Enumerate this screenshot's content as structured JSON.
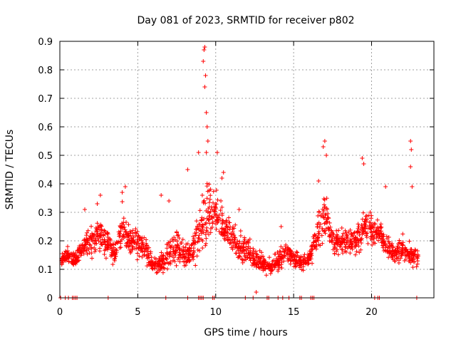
{
  "colors": {
    "series": "#ff0000",
    "grid": "#a0a0a0",
    "axis": "#000000",
    "background": "#ffffff"
  },
  "chart_data": {
    "type": "scatter",
    "marker": "plus",
    "title": "Day 081 of 2023, SRMTID for receiver p802",
    "xlabel": "GPS time / hours",
    "ylabel": "SRMTID / TECUs",
    "xlim": [
      0,
      24
    ],
    "ylim": [
      0,
      0.9
    ],
    "xticks": [
      0,
      5,
      10,
      15,
      20
    ],
    "yticks": [
      0,
      0.1,
      0.2,
      0.3,
      0.4,
      0.5,
      0.6,
      0.7,
      0.8,
      0.9
    ],
    "xtick_labels": [
      "0",
      "5",
      "10",
      "15",
      "20"
    ],
    "ytick_labels": [
      "0",
      "0.1",
      "0.2",
      "0.3",
      "0.4",
      "0.5",
      "0.6",
      "0.7",
      "0.8",
      "0.9"
    ],
    "grid": true,
    "series": [
      {
        "name": "SRMTID p802",
        "color": "#ff0000",
        "description_of_envelope": "hour, typical_value, spread",
        "envelope": [
          [
            0.1,
            0.13,
            0.03
          ],
          [
            0.5,
            0.15,
            0.03
          ],
          [
            1.0,
            0.13,
            0.04
          ],
          [
            1.5,
            0.18,
            0.06
          ],
          [
            2.0,
            0.2,
            0.07
          ],
          [
            2.5,
            0.22,
            0.08
          ],
          [
            3.0,
            0.2,
            0.08
          ],
          [
            3.5,
            0.15,
            0.05
          ],
          [
            4.0,
            0.25,
            0.1
          ],
          [
            4.5,
            0.2,
            0.07
          ],
          [
            5.0,
            0.19,
            0.07
          ],
          [
            5.5,
            0.17,
            0.06
          ],
          [
            6.0,
            0.11,
            0.04
          ],
          [
            6.5,
            0.12,
            0.05
          ],
          [
            7.0,
            0.16,
            0.08
          ],
          [
            7.5,
            0.18,
            0.09
          ],
          [
            8.0,
            0.15,
            0.07
          ],
          [
            8.5,
            0.17,
            0.08
          ],
          [
            9.0,
            0.25,
            0.12
          ],
          [
            9.5,
            0.3,
            0.15
          ],
          [
            10.0,
            0.3,
            0.1
          ],
          [
            10.5,
            0.25,
            0.08
          ],
          [
            11.0,
            0.22,
            0.07
          ],
          [
            11.5,
            0.18,
            0.07
          ],
          [
            12.0,
            0.17,
            0.06
          ],
          [
            12.5,
            0.14,
            0.05
          ],
          [
            13.0,
            0.12,
            0.05
          ],
          [
            13.5,
            0.11,
            0.04
          ],
          [
            14.0,
            0.13,
            0.05
          ],
          [
            14.5,
            0.16,
            0.05
          ],
          [
            15.0,
            0.14,
            0.04
          ],
          [
            15.5,
            0.12,
            0.04
          ],
          [
            16.0,
            0.13,
            0.04
          ],
          [
            16.5,
            0.22,
            0.08
          ],
          [
            17.0,
            0.3,
            0.12
          ],
          [
            17.5,
            0.2,
            0.06
          ],
          [
            18.0,
            0.19,
            0.06
          ],
          [
            18.5,
            0.2,
            0.06
          ],
          [
            19.0,
            0.2,
            0.06
          ],
          [
            19.5,
            0.25,
            0.1
          ],
          [
            20.0,
            0.24,
            0.07
          ],
          [
            20.5,
            0.22,
            0.07
          ],
          [
            21.0,
            0.18,
            0.06
          ],
          [
            21.5,
            0.15,
            0.05
          ],
          [
            22.0,
            0.17,
            0.06
          ],
          [
            22.5,
            0.15,
            0.05
          ]
        ],
        "peaks": [
          [
            9.3,
            0.88
          ],
          [
            9.25,
            0.87
          ],
          [
            9.2,
            0.83
          ],
          [
            9.35,
            0.78
          ],
          [
            9.3,
            0.74
          ],
          [
            9.4,
            0.65
          ],
          [
            9.45,
            0.6
          ],
          [
            9.5,
            0.55
          ],
          [
            9.4,
            0.51
          ],
          [
            8.9,
            0.51
          ],
          [
            10.1,
            0.51
          ],
          [
            17.0,
            0.55
          ],
          [
            16.9,
            0.53
          ],
          [
            17.1,
            0.5
          ],
          [
            19.4,
            0.49
          ],
          [
            19.5,
            0.47
          ],
          [
            22.5,
            0.55
          ],
          [
            22.55,
            0.52
          ],
          [
            22.5,
            0.46
          ],
          [
            22.6,
            0.39
          ],
          [
            4.2,
            0.39
          ],
          [
            4.0,
            0.37
          ],
          [
            8.2,
            0.45
          ],
          [
            10.5,
            0.44
          ],
          [
            10.4,
            0.42
          ],
          [
            16.6,
            0.41
          ],
          [
            20.9,
            0.39
          ],
          [
            2.6,
            0.36
          ],
          [
            2.4,
            0.33
          ],
          [
            1.6,
            0.31
          ],
          [
            6.5,
            0.36
          ],
          [
            7.0,
            0.34
          ],
          [
            11.5,
            0.31
          ],
          [
            14.2,
            0.25
          ],
          [
            12.6,
            0.02
          ],
          [
            0.5,
            0.18
          ]
        ],
        "zero_values_at_hours": [
          0.05,
          0.35,
          0.55,
          0.8,
          0.9,
          1.0,
          1.1,
          3.1,
          6.8,
          8.2,
          8.9,
          9.0,
          9.1,
          9.2,
          9.8,
          9.9,
          11.9,
          12.4,
          13.3,
          13.4,
          14.0,
          14.3,
          14.7,
          15.4,
          15.5,
          16.1,
          16.2,
          16.3,
          20.2,
          20.4,
          20.5,
          22.9
        ]
      }
    ]
  }
}
